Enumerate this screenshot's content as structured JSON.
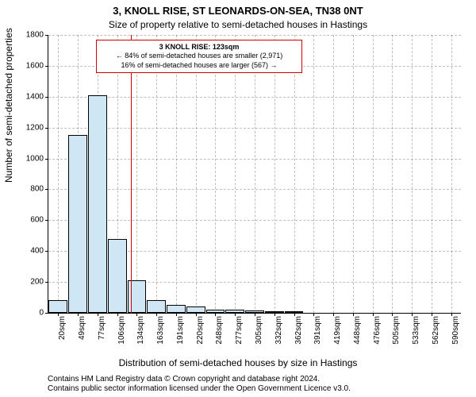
{
  "title_line1": "3, KNOLL RISE, ST LEONARDS-ON-SEA, TN38 0NT",
  "title_line2": "Size of property relative to semi-detached houses in Hastings",
  "y_axis_label": "Number of semi-detached properties",
  "x_axis_label": "Distribution of semi-detached houses by size in Hastings",
  "caption_line1": "Contains HM Land Registry data © Crown copyright and database right 2024.",
  "caption_line2": "Contains public sector information licensed under the Open Government Licence v3.0.",
  "chart": {
    "type": "histogram",
    "background_color": "#ffffff",
    "grid_color": "rgba(0,0,0,0.25)",
    "axis_color": "#000000",
    "bar_fill": "#cfe7f5",
    "bar_border": "#000000",
    "tick_fontsize": 10,
    "label_fontsize": 12,
    "title_fontsize": 13,
    "ylim": [
      0,
      1800
    ],
    "ytick_step": 200,
    "yticks": [
      0,
      200,
      400,
      600,
      800,
      1000,
      1200,
      1400,
      1600,
      1800
    ],
    "xticks": [
      "20sqm",
      "49sqm",
      "77sqm",
      "106sqm",
      "134sqm",
      "163sqm",
      "191sqm",
      "220sqm",
      "248sqm",
      "277sqm",
      "305sqm",
      "332sqm",
      "362sqm",
      "391sqm",
      "419sqm",
      "448sqm",
      "476sqm",
      "505sqm",
      "533sqm",
      "562sqm",
      "590sqm"
    ],
    "values": [
      80,
      1150,
      1410,
      480,
      210,
      80,
      50,
      40,
      20,
      20,
      15,
      10,
      10,
      0,
      0,
      0,
      0,
      0,
      0,
      0,
      0
    ],
    "reference_line": {
      "x_index": 3.7,
      "color": "#d40000",
      "width": 1
    },
    "annotation": {
      "border_color": "#d40000",
      "border_width": 1,
      "title": "3 KNOLL RISE: 123sqm",
      "line2": "← 84% of semi-detached houses are smaller (2,971)",
      "line3": "16% of semi-detached houses are larger (567) →",
      "fontsize": 9
    }
  }
}
